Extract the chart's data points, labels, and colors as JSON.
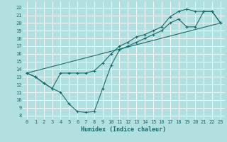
{
  "xlabel": "Humidex (Indice chaleur)",
  "ylabel": "",
  "bg_color": "#b2e0e0",
  "line_color": "#1a6b6b",
  "grid_color": "#ffffff",
  "xlim": [
    -0.5,
    23.5
  ],
  "ylim": [
    7.5,
    22.8
  ],
  "yticks": [
    8,
    9,
    10,
    11,
    12,
    13,
    14,
    15,
    16,
    17,
    18,
    19,
    20,
    21,
    22
  ],
  "xticks": [
    0,
    1,
    2,
    3,
    4,
    5,
    6,
    7,
    8,
    9,
    10,
    11,
    12,
    13,
    14,
    15,
    16,
    17,
    18,
    19,
    20,
    21,
    22,
    23
  ],
  "line1_x": [
    0,
    1,
    2,
    3,
    4,
    5,
    6,
    7,
    8,
    9,
    10,
    11,
    12,
    13,
    14,
    15,
    16,
    17,
    18,
    19,
    20,
    21,
    22,
    23
  ],
  "line1_y": [
    13.5,
    13.0,
    12.2,
    11.5,
    11.0,
    9.5,
    8.5,
    8.4,
    8.5,
    11.5,
    14.5,
    16.5,
    17.0,
    17.5,
    18.0,
    18.5,
    19.0,
    20.0,
    20.5,
    19.5,
    19.5,
    21.5,
    21.5,
    20.0
  ],
  "line2_x": [
    0,
    1,
    2,
    3,
    4,
    5,
    6,
    7,
    8,
    9,
    10,
    11,
    12,
    13,
    14,
    15,
    16,
    17,
    18,
    19,
    20,
    21,
    22,
    23
  ],
  "line2_y": [
    13.5,
    13.0,
    12.2,
    11.5,
    13.5,
    13.5,
    13.5,
    13.5,
    13.8,
    14.8,
    16.0,
    17.0,
    17.5,
    18.2,
    18.5,
    19.0,
    19.5,
    20.8,
    21.5,
    21.8,
    21.5,
    21.5,
    21.5,
    20.0
  ],
  "line3_x": [
    0,
    23
  ],
  "line3_y": [
    13.5,
    20.0
  ]
}
